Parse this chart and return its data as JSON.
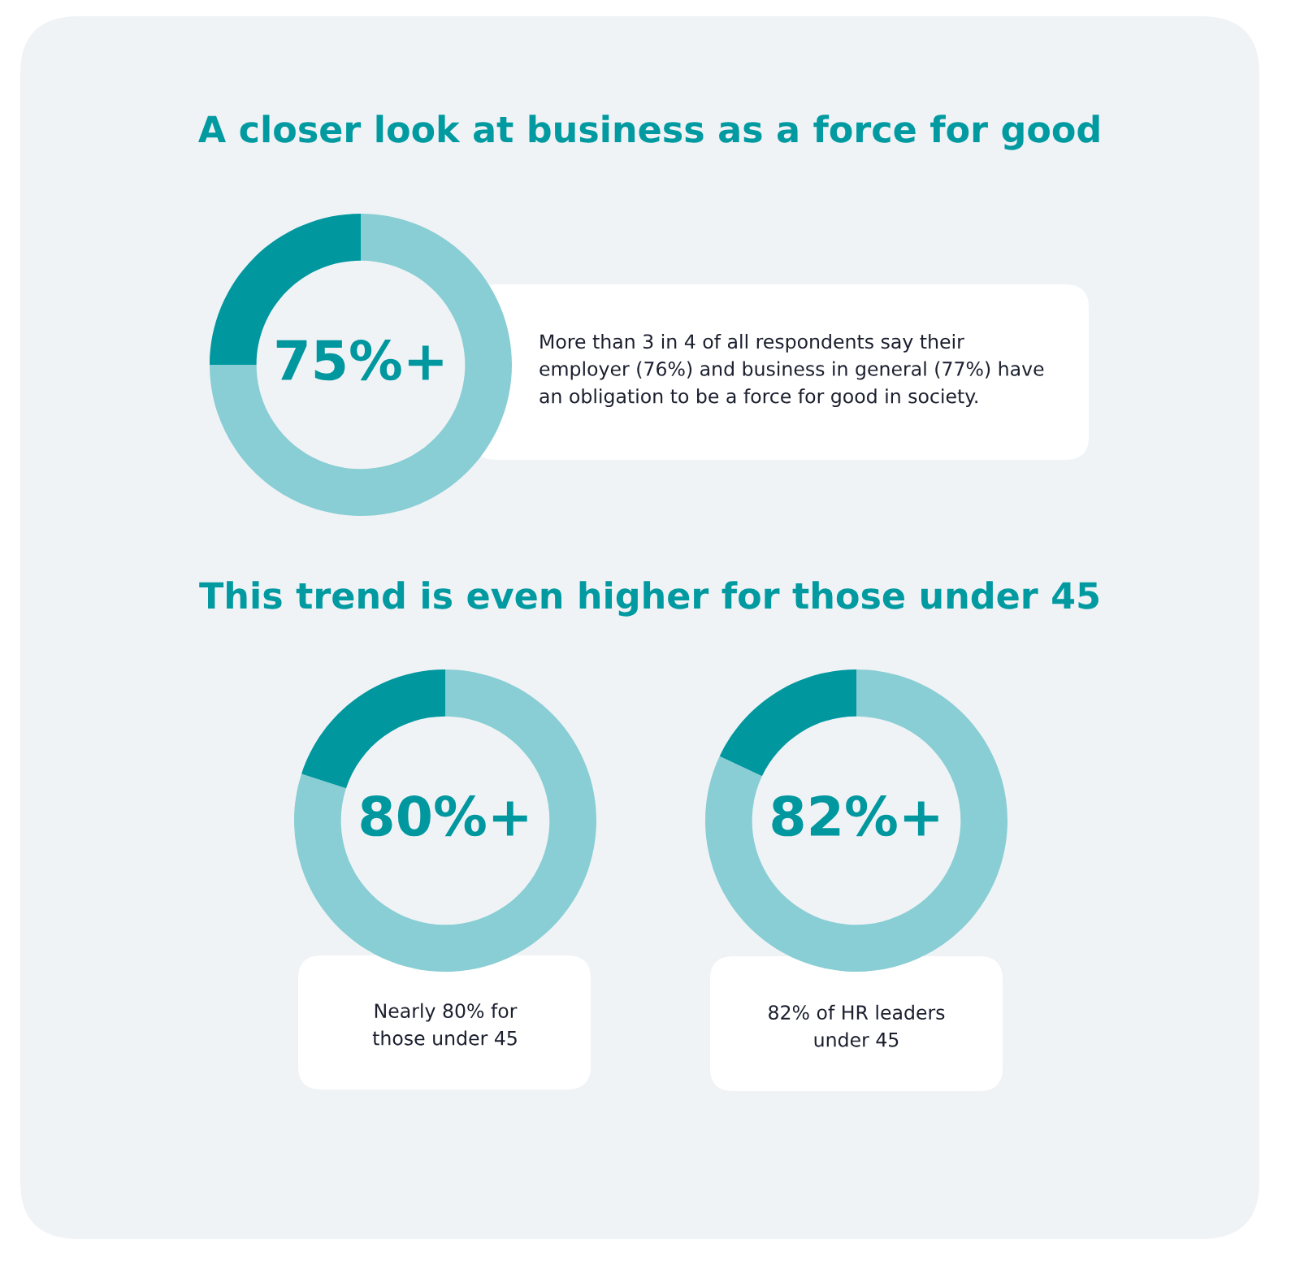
{
  "chart_data": [
    {
      "type": "donut",
      "title": "A closer look at business as a force for good",
      "categories": [
        null,
        null
      ],
      "values": [
        75,
        25
      ],
      "colors": [
        "#88ced4",
        "#00979f"
      ],
      "annotations": [
        "75%+",
        "More than 3 in 4 of all respondents say their\nemployer (76%) and business in general (77%) have\nan obligation to be a force for good in society."
      ]
    },
    {
      "type": "donut",
      "title": "This trend is even higher for those under 45",
      "categories": [
        null,
        null
      ],
      "values": [
        80,
        20
      ],
      "colors": [
        "#88ced4",
        "#00979f"
      ],
      "annotations": [
        "80%+",
        "Nearly 80% for\nthose under 45"
      ]
    },
    {
      "type": "donut",
      "categories": [
        null,
        null
      ],
      "values": [
        82,
        18
      ],
      "colors": [
        "#88ced4",
        "#00979f"
      ],
      "annotations": [
        "82%+",
        "82% of HR leaders\nunder 45"
      ]
    }
  ]
}
